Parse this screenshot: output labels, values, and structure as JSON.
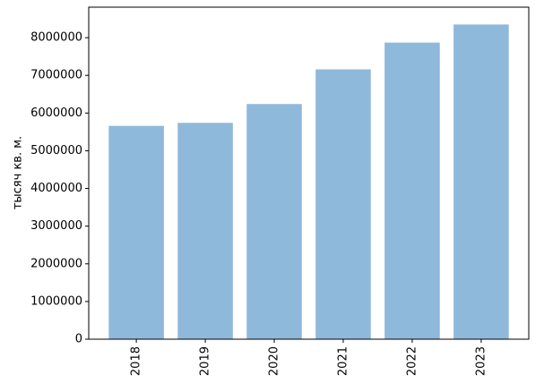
{
  "chart_data": {
    "type": "bar",
    "y_label": "тысяч кв. м.",
    "categories": [
      "2018",
      "2019",
      "2020",
      "2021",
      "2022",
      "2023"
    ],
    "values": [
      5660000,
      5740000,
      6240000,
      7160000,
      7870000,
      8350000
    ],
    "color": "#8fb9da",
    "ylim": [
      0,
      8810000
    ],
    "yticks": [
      0,
      1000000,
      2000000,
      3000000,
      4000000,
      5000000,
      6000000,
      7000000,
      8000000
    ],
    "grid": false
  }
}
